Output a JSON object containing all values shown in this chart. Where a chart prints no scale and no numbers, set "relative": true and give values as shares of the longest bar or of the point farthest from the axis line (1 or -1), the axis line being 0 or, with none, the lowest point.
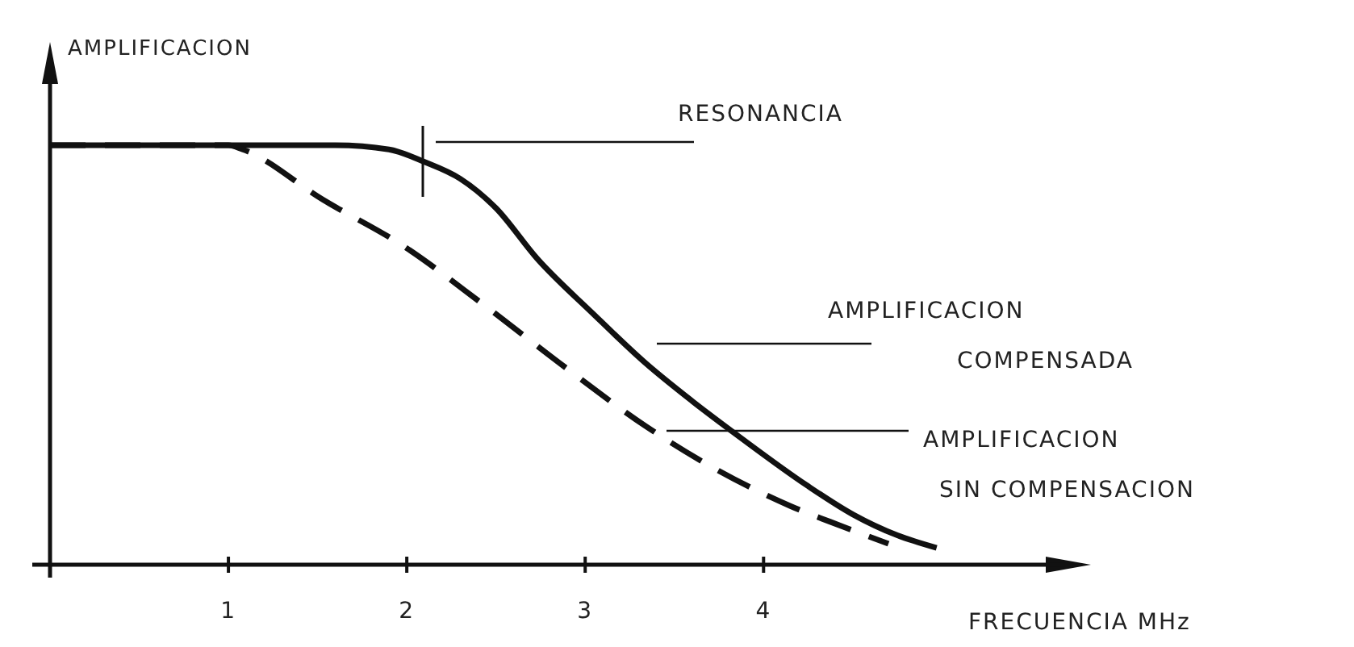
{
  "chart_data": {
    "type": "line",
    "relative": true,
    "xlabel": "FRECUENCIA MHz",
    "ylabel": "AMPLIFICACION",
    "xlim": [
      0,
      5.6
    ],
    "xticks": [
      1,
      2,
      3,
      4
    ],
    "grid": false,
    "marker": "none",
    "series": [
      {
        "color": "#111111",
        "line_style": "solid",
        "x": [
          0,
          1.0,
          1.6,
          1.9,
          2.1,
          2.3,
          2.5,
          2.73,
          3.04,
          3.34,
          3.6,
          3.88,
          4.24,
          4.5,
          4.75,
          4.97
        ],
        "values": [
          1,
          1,
          1,
          0.99,
          0.96,
          0.92,
          0.85,
          0.73,
          0.6,
          0.48,
          0.39,
          0.3,
          0.19,
          0.12,
          0.07,
          0.04
        ]
      },
      {
        "color": "#111111",
        "line_style": "dashed",
        "x": [
          0,
          1.0,
          1.08,
          1.53,
          1.98,
          2.43,
          2.89,
          3.34,
          3.64,
          4.15,
          4.45,
          4.7
        ],
        "values": [
          1,
          1,
          0.99,
          0.87,
          0.76,
          0.62,
          0.47,
          0.33,
          0.25,
          0.14,
          0.09,
          0.05
        ]
      }
    ],
    "annotations": [
      "RESONANCIA",
      "AMPLIFICACION\nCOMPENSADA",
      "AMPLIFICACION\nSIN COMPENSACION"
    ]
  }
}
